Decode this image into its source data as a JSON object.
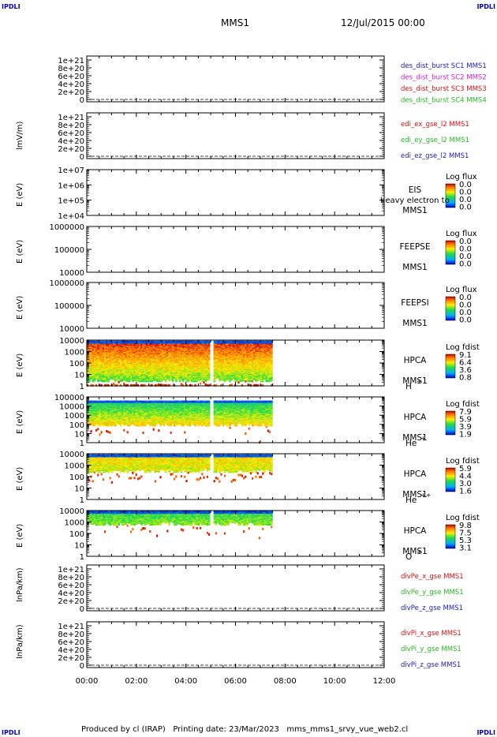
{
  "header": {
    "spacecraft": "MMS1",
    "datetime": "12/Jul/2015 00:00",
    "corner_label": "IPDLI"
  },
  "footer": {
    "text": "Produced by cl (IRAP)   Printing date: 23/Mar/2023   mms_mms1_srvy_vue_web2.cl"
  },
  "time_axis": {
    "ticks": [
      "00:00",
      "02:00",
      "04:00",
      "06:00",
      "08:00",
      "10:00",
      "12:00"
    ]
  },
  "colors": {
    "blue": "#1a1acc",
    "magenta": "#cc22cc",
    "red": "#dd1111",
    "green": "#22bb22",
    "corner": "#0000c0"
  },
  "chart_data": [
    {
      "type": "line",
      "panel": "des_dist_burst",
      "ylabel": "",
      "yticks": [
        "0",
        "2e+20",
        "4e+20",
        "6e+20",
        "8e+20",
        "1e+21"
      ],
      "ylim": [
        0,
        1e+21
      ],
      "dashed_zero": true,
      "legend": [
        {
          "label": "des_dist_burst SC1 MMS1",
          "color": "#1a1acc"
        },
        {
          "label": "des_dist_burst SC2 MMS2",
          "color": "#cc22cc"
        },
        {
          "label": "des_dist_burst SC3 MMS3",
          "color": "#dd1111"
        },
        {
          "label": "des_dist_burst SC4 MMS4",
          "color": "#22bb22"
        }
      ]
    },
    {
      "type": "line",
      "panel": "edi",
      "ylabel": "lmV/m)",
      "yticks": [
        "0",
        "2e+20",
        "4e+20",
        "6e+20",
        "8e+20",
        "1e+21"
      ],
      "ylim": [
        0,
        1e+21
      ],
      "dashed_zero": true,
      "legend": [
        {
          "label": "edi_ex_gse_l2 MMS1",
          "color": "#dd1111"
        },
        {
          "label": "edi_ey_gse_l2 MMS1",
          "color": "#22bb22"
        },
        {
          "label": "edi_ez_gse_l2 MMS1",
          "color": "#1a1acc"
        }
      ]
    },
    {
      "type": "heatmap",
      "panel": "EIS",
      "ylabel": "E (eV)",
      "yscale": "log",
      "yticks": [
        "1e+04",
        "1e+05",
        "1e+06",
        "1e+07"
      ],
      "instrument": [
        "EIS",
        "MMS1"
      ],
      "overlay_text": "heavy electron to",
      "cbar_title": "Log flux",
      "cbar_ticks": [
        "0.0",
        "0.0",
        "0.0",
        "0.0"
      ]
    },
    {
      "type": "heatmap",
      "panel": "FEEPSE",
      "ylabel": "E (eV)",
      "yscale": "log",
      "yticks": [
        "10000",
        "100000",
        "1000000"
      ],
      "instrument": [
        "FEEPSE",
        "MMS1"
      ],
      "cbar_title": "Log flux",
      "cbar_ticks": [
        "0.0",
        "0.0",
        "0.0",
        "0.0"
      ]
    },
    {
      "type": "heatmap",
      "panel": "FEEPSI",
      "ylabel": "E (eV)",
      "yscale": "log",
      "yticks": [
        "10000",
        "100000",
        "1000000"
      ],
      "instrument": [
        "FEEPSI",
        "MMS1"
      ],
      "cbar_title": "Log flux",
      "cbar_ticks": [
        "0.0",
        "0.0",
        "0.0",
        "0.0"
      ]
    },
    {
      "type": "heatmap",
      "panel": "HPCA H+",
      "ylabel": "E (eV)",
      "yscale": "log",
      "yticks": [
        "1",
        "10",
        "100",
        "1000",
        "10000"
      ],
      "instrument": [
        "HPCA",
        "MMS1"
      ],
      "species": "H",
      "species_sup": "+",
      "cbar_title": "Log fdist",
      "cbar_ticks": [
        "9.1",
        "6.4",
        "3.6",
        "0.8"
      ],
      "data_hours": [
        0,
        7.45
      ],
      "gap_hours": [
        4.95,
        5.1
      ]
    },
    {
      "type": "heatmap",
      "panel": "HPCA He+",
      "ylabel": "E (eV)",
      "yscale": "log",
      "yticks": [
        "1",
        "10",
        "100",
        "1000",
        "10000",
        "100000"
      ],
      "instrument": [
        "HPCA",
        "MMS1"
      ],
      "species": "He",
      "species_sup": "+",
      "cbar_title": "Log fdist",
      "cbar_ticks": [
        "7.9",
        "5.9",
        "3.9",
        "1.9"
      ],
      "data_hours": [
        0,
        7.45
      ],
      "gap_hours": [
        4.95,
        5.1
      ]
    },
    {
      "type": "heatmap",
      "panel": "HPCA He++",
      "ylabel": "E (eV)",
      "yscale": "log",
      "yticks": [
        "1",
        "10",
        "100",
        "1000",
        "10000"
      ],
      "instrument": [
        "HPCA",
        "MMS1"
      ],
      "species": "He",
      "species_sup": "++",
      "cbar_title": "Log fdist",
      "cbar_ticks": [
        "5.9",
        "4.4",
        "3.0",
        "1.6"
      ],
      "data_hours": [
        0,
        7.45
      ],
      "gap_hours": [
        4.95,
        5.1
      ]
    },
    {
      "type": "heatmap",
      "panel": "HPCA O+",
      "ylabel": "E (eV)",
      "yscale": "log",
      "yticks": [
        "1",
        "10",
        "100",
        "1000",
        "10000"
      ],
      "instrument": [
        "HPCA",
        "MMS1"
      ],
      "species": "O",
      "species_sup": "+",
      "cbar_title": "Log fdist",
      "cbar_ticks": [
        "9.8",
        "7.5",
        "5.3",
        "3.1"
      ],
      "data_hours": [
        0,
        7.45
      ],
      "gap_hours": [
        4.95,
        5.1
      ]
    },
    {
      "type": "line",
      "panel": "divPe",
      "ylabel": "lnPa/km)",
      "yticks": [
        "0",
        "2e+20",
        "4e+20",
        "6e+20",
        "8e+20",
        "1e+21"
      ],
      "ylim": [
        0,
        1e+21
      ],
      "dashed_zero": true,
      "legend": [
        {
          "label": "divPe_x_gse MMS1",
          "color": "#dd1111"
        },
        {
          "label": "divPe_y_gse MMS1",
          "color": "#22bb22"
        },
        {
          "label": "divPe_z_gse MMS1",
          "color": "#1a1acc"
        }
      ]
    },
    {
      "type": "line",
      "panel": "divPi",
      "ylabel": "lnPa/km)",
      "yticks": [
        "0",
        "2e+20",
        "4e+20",
        "6e+20",
        "8e+20",
        "1e+21"
      ],
      "ylim": [
        0,
        1e+21
      ],
      "dashed_zero": true,
      "legend": [
        {
          "label": "divPi_x_gse MMS1",
          "color": "#dd1111"
        },
        {
          "label": "divPi_y_gse MMS1",
          "color": "#22bb22"
        },
        {
          "label": "divPi_z_gse MMS1",
          "color": "#1a1acc"
        }
      ]
    }
  ]
}
